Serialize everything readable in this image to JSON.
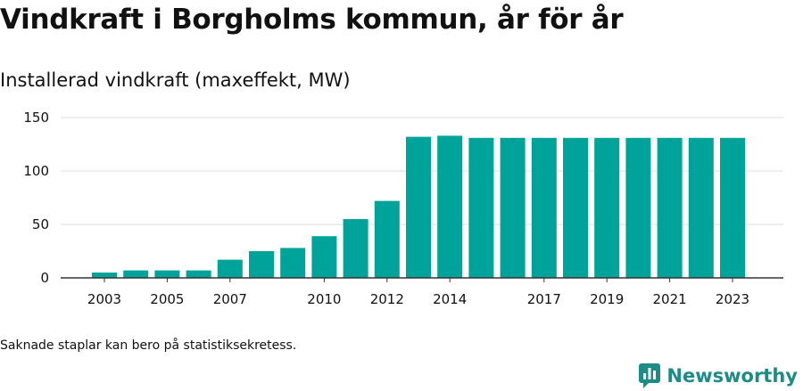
{
  "title": "Vindkraft i Borgholms kommun, år för år",
  "subtitle": "Installerad vindkraft (maxeffekt, MW)",
  "footnote": "Saknade staplar kan bero på statistiksekretess.",
  "brand": {
    "name": "Newsworthy",
    "icon": "newsworthy-logo-icon",
    "color": "#1d8b87"
  },
  "chart_data": {
    "type": "bar",
    "categories": [
      "2003",
      "2004",
      "2005",
      "2006",
      "2007",
      "2008",
      "2009",
      "2010",
      "2011",
      "2012",
      "2013",
      "2014",
      "2015",
      "2016",
      "2017",
      "2018",
      "2019",
      "2020",
      "2021",
      "2022",
      "2023"
    ],
    "values": [
      5,
      7,
      7,
      7,
      17,
      25,
      28,
      39,
      55,
      72,
      132,
      133,
      131,
      131,
      131,
      131,
      131,
      131,
      131,
      131,
      131
    ],
    "x_tick_labels": [
      "2003",
      "2005",
      "2007",
      "2010",
      "2012",
      "2014",
      "2017",
      "2019",
      "2021",
      "2023"
    ],
    "y_ticks": [
      "0",
      "50",
      "100",
      "150"
    ],
    "ylim": [
      0,
      150
    ],
    "bar_color": "#00a399",
    "grid": true
  }
}
